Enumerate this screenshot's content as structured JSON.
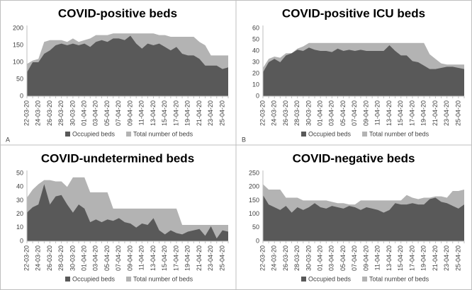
{
  "chart_data": [
    {
      "type": "area",
      "title": "COVID-positive beds",
      "panel_label": "A",
      "categories": [
        "22-03-20",
        null,
        "24-03-20",
        null,
        "26-03-20",
        null,
        "28-03-20",
        null,
        "30-03-20",
        null,
        "01-04-20",
        null,
        "03-04-20",
        null,
        "05-04-20",
        null,
        "07-04-20",
        null,
        "09-04-20",
        null,
        "11-04-20",
        null,
        "13-04-20",
        null,
        "15-04-20",
        null,
        "17-04-20",
        null,
        "19-04-20",
        null,
        "21-04-20",
        null,
        "23-04-20",
        null,
        "25-04-20",
        null
      ],
      "series": [
        {
          "name": "Total number of beds",
          "color": "#b3b3b3",
          "values": [
            95,
            105,
            110,
            160,
            165,
            165,
            165,
            160,
            170,
            160,
            165,
            170,
            180,
            180,
            180,
            185,
            185,
            185,
            185,
            185,
            185,
            185,
            185,
            180,
            180,
            175,
            175,
            175,
            175,
            175,
            160,
            150,
            120,
            120,
            120,
            120
          ]
        },
        {
          "name": "Occupied beds",
          "color": "#595959",
          "values": [
            70,
            100,
            100,
            125,
            135,
            150,
            155,
            150,
            155,
            150,
            155,
            145,
            160,
            165,
            160,
            170,
            170,
            165,
            178,
            155,
            140,
            155,
            150,
            155,
            145,
            135,
            145,
            125,
            120,
            120,
            110,
            90,
            90,
            90,
            80,
            85
          ]
        }
      ],
      "legend_order": [
        1,
        0
      ],
      "ylim": [
        0,
        200
      ],
      "yticks": [
        0,
        50,
        100,
        150,
        200
      ],
      "grid": false
    },
    {
      "type": "area",
      "title": "COVID-positive ICU beds",
      "panel_label": "B",
      "categories": [
        "22-03-20",
        null,
        "24-03-20",
        null,
        "26-03-20",
        null,
        "28-03-20",
        null,
        "30-03-20",
        null,
        "01-04-20",
        null,
        "03-04-20",
        null,
        "05-04-20",
        null,
        "07-04-20",
        null,
        "09-04-20",
        null,
        "11-04-20",
        null,
        "13-04-20",
        null,
        "15-04-20",
        null,
        "17-04-20",
        null,
        "19-04-20",
        null,
        "21-04-20",
        null,
        "23-04-20",
        null,
        "25-04-20",
        null
      ],
      "series": [
        {
          "name": "Total number of beds",
          "color": "#b3b3b3",
          "values": [
            25,
            33,
            35,
            34,
            38,
            38,
            42,
            44,
            47,
            47,
            47,
            47,
            47,
            47,
            47,
            47,
            47,
            47,
            47,
            47,
            47,
            47,
            47,
            47,
            47,
            47,
            47,
            47,
            47,
            37,
            33,
            29,
            28,
            28,
            28,
            28
          ]
        },
        {
          "name": "Occupied beds",
          "color": "#595959",
          "values": [
            21,
            30,
            33,
            30,
            36,
            38,
            41,
            40,
            43,
            41,
            40,
            40,
            39,
            42,
            40,
            41,
            40,
            41,
            40,
            40,
            40,
            40,
            45,
            40,
            36,
            36,
            31,
            30,
            27,
            24,
            24,
            25,
            26,
            26,
            25,
            24
          ]
        }
      ],
      "legend_order": [
        1,
        0
      ],
      "ylim": [
        0,
        60
      ],
      "yticks": [
        0,
        10,
        20,
        30,
        40,
        50,
        60
      ],
      "grid": false
    },
    {
      "type": "area",
      "title": "COVID-undetermined beds",
      "categories": [
        "22-03-20",
        null,
        "24-03-20",
        null,
        "26-03-20",
        null,
        "28-03-20",
        null,
        "30-03-20",
        null,
        "01-04-20",
        null,
        "03-04-20",
        null,
        "05-04-20",
        null,
        "07-04-20",
        null,
        "09-04-20",
        null,
        "11-04-20",
        null,
        "13-04-20",
        null,
        "15-04-20",
        null,
        "17-04-20",
        null,
        "19-04-20",
        null,
        "21-04-20",
        null,
        "23-04-20",
        null,
        "25-04-20",
        null
      ],
      "series": [
        {
          "name": "Total number of beds",
          "color": "#b3b3b3",
          "values": [
            32,
            38,
            42,
            45,
            45,
            44,
            44,
            40,
            47,
            47,
            47,
            36,
            36,
            36,
            36,
            24,
            24,
            24,
            24,
            24,
            24,
            24,
            24,
            24,
            24,
            24,
            24,
            12,
            12,
            12,
            12,
            12,
            12,
            12,
            12,
            12
          ]
        },
        {
          "name": "Occupied beds",
          "color": "#595959",
          "values": [
            21,
            25,
            27,
            42,
            27,
            33,
            34,
            27,
            21,
            27,
            24,
            14,
            16,
            14,
            16,
            15,
            17,
            14,
            13,
            10,
            13,
            12,
            17,
            8,
            5,
            8,
            6,
            5,
            7,
            8,
            9,
            4,
            11,
            2,
            8,
            7
          ]
        }
      ],
      "legend_order": [
        1,
        0
      ],
      "ylim": [
        0,
        50
      ],
      "yticks": [
        0,
        10,
        20,
        30,
        40,
        50
      ],
      "grid": false
    },
    {
      "type": "area",
      "title": "COVID-negative beds",
      "categories": [
        "22-03-20",
        null,
        "24-03-20",
        null,
        "26-03-20",
        null,
        "28-03-20",
        null,
        "30-03-20",
        null,
        "01-04-20",
        null,
        "03-04-20",
        null,
        "05-04-20",
        null,
        "07-04-20",
        null,
        "09-04-20",
        null,
        "11-04-20",
        null,
        "13-04-20",
        null,
        "15-04-20",
        null,
        "17-04-20",
        null,
        "19-04-20",
        null,
        "21-04-20",
        null,
        "23-04-20",
        null,
        "25-04-20",
        null
      ],
      "series": [
        {
          "name": "Total number of beds",
          "color": "#b3b3b3",
          "values": [
            210,
            190,
            190,
            190,
            160,
            160,
            160,
            150,
            150,
            150,
            150,
            150,
            145,
            140,
            140,
            135,
            135,
            150,
            150,
            150,
            150,
            150,
            150,
            150,
            150,
            170,
            160,
            155,
            160,
            160,
            165,
            165,
            160,
            185,
            185,
            190
          ]
        },
        {
          "name": "Occupied beds",
          "color": "#595959",
          "values": [
            170,
            135,
            125,
            115,
            130,
            105,
            125,
            115,
            125,
            140,
            125,
            120,
            130,
            125,
            120,
            130,
            125,
            115,
            125,
            120,
            115,
            105,
            115,
            140,
            135,
            135,
            140,
            135,
            135,
            155,
            160,
            145,
            140,
            130,
            120,
            135
          ]
        }
      ],
      "legend_order": [
        1,
        0
      ],
      "ylim": [
        0,
        250
      ],
      "yticks": [
        0,
        50,
        100,
        150,
        200,
        250
      ],
      "grid": false
    }
  ]
}
